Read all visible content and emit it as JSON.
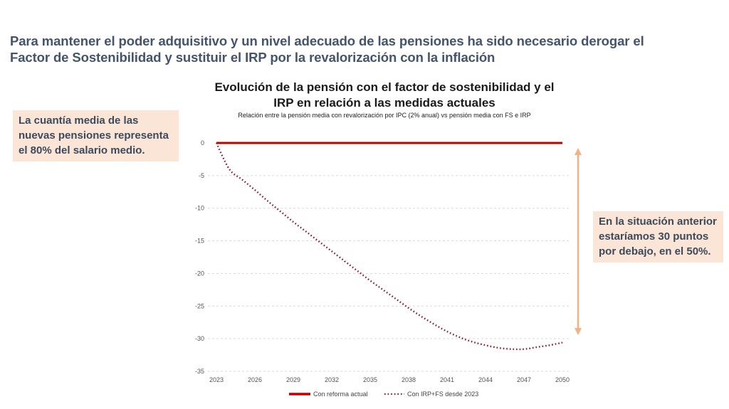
{
  "headline": {
    "line1": "Para mantener el poder adquisitivo y un nivel adecuado de las pensiones ha sido necesario derogar el",
    "line2": "Factor de Sostenibilidad y sustituir el IRP por la revalorización con la inflación"
  },
  "callouts": {
    "left": [
      "La cuantía media de las",
      "nuevas pensiones representa",
      "el 80% del salario medio."
    ],
    "right": [
      "En la situación anterior",
      "estaríamos 30 puntos",
      "por debajo, en el 50%."
    ]
  },
  "colors": {
    "reform_line": "#c00000",
    "irp_fs_line": "#8b1a2b",
    "arrow": "#f4b183",
    "callout_bg": "#fbe5d6",
    "headline": "#44546a"
  },
  "chart_data": {
    "type": "line",
    "title": "Evolución de la pensión con el factor de sostenibilidad y el IRP en relación a las medidas actuales",
    "title_lines": [
      "Evolución de la pensión con el factor de sostenibilidad y el",
      "IRP en relación a las medidas actuales"
    ],
    "subtitle": "Relación entre la pensión media con revalorización por IPC (2% anual) vs pensión media con FS e IRP",
    "xlabel": "",
    "ylabel": "",
    "x": [
      2023,
      2024,
      2025,
      2026,
      2027,
      2028,
      2029,
      2030,
      2031,
      2032,
      2033,
      2034,
      2035,
      2036,
      2037,
      2038,
      2039,
      2040,
      2041,
      2042,
      2043,
      2044,
      2045,
      2046,
      2047,
      2048,
      2049,
      2050
    ],
    "xlim": [
      2023,
      2050
    ],
    "ylim": [
      -35,
      0
    ],
    "x_ticks": [
      "2023",
      "2026",
      "2029",
      "2032",
      "2035",
      "2038",
      "2041",
      "2044",
      "2047",
      "2050"
    ],
    "y_ticks": [
      "0",
      "-5",
      "-10",
      "-15",
      "-20",
      "-25",
      "-30",
      "-35"
    ],
    "y_tick_values": [
      0,
      -5,
      -10,
      -15,
      -20,
      -25,
      -30,
      -35
    ],
    "grid": "horizontal dashed",
    "legend_position": "bottom",
    "series": [
      {
        "name": "Con reforma actual",
        "style": "solid",
        "values": [
          0,
          0,
          0,
          0,
          0,
          0,
          0,
          0,
          0,
          0,
          0,
          0,
          0,
          0,
          0,
          0,
          0,
          0,
          0,
          0,
          0,
          0,
          0,
          0,
          0,
          0,
          0,
          0
        ]
      },
      {
        "name": "Con IRP+FS desde 2023",
        "style": "dotted",
        "values": [
          0,
          -4.0,
          -5.6,
          -7.2,
          -8.9,
          -10.5,
          -12.1,
          -13.6,
          -15.1,
          -16.6,
          -18.1,
          -19.6,
          -21.1,
          -22.5,
          -23.9,
          -25.3,
          -26.6,
          -27.8,
          -28.9,
          -29.8,
          -30.5,
          -31.0,
          -31.4,
          -31.6,
          -31.6,
          -31.3,
          -31.0,
          -30.6
        ]
      }
    ],
    "annotation": {
      "type": "double-arrow",
      "from": 0,
      "to": -30,
      "label": "30 puntos"
    }
  }
}
